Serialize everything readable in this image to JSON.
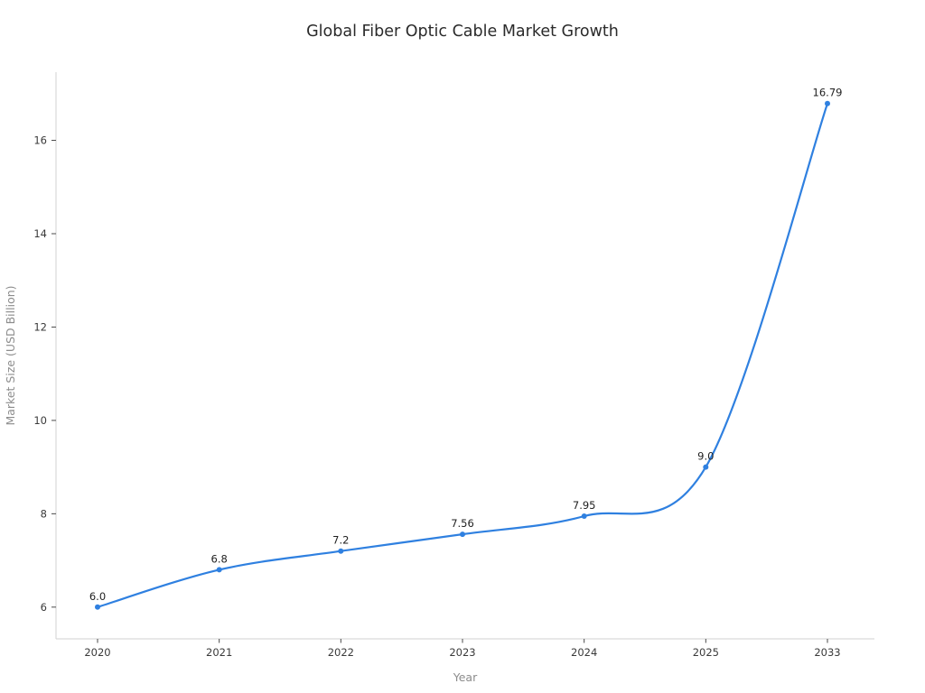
{
  "title": "Global Fiber Optic Cable Market Growth",
  "chart_data": {
    "type": "line",
    "title": "Global Fiber Optic Cable Market Growth",
    "xlabel": "Year",
    "ylabel": "Market Size (USD Billion)",
    "categories": [
      "2020",
      "2021",
      "2022",
      "2023",
      "2024",
      "2025",
      "2033"
    ],
    "values": [
      6.0,
      6.8,
      7.2,
      7.56,
      7.95,
      9.0,
      16.79
    ],
    "point_labels": [
      "6.0",
      "6.8",
      "7.2",
      "7.56",
      "7.95",
      "9.0",
      "16.79"
    ],
    "yticks": [
      6,
      8,
      10,
      12,
      14,
      16
    ],
    "ylim": [
      5.32,
      17.46
    ],
    "grid": false,
    "legend": "none",
    "smooth": true,
    "style": {
      "line_color": "#2f80e0",
      "marker_color": "#2f80e0",
      "axis_color": "#d2d2d2",
      "tick_color": "#4a4a4a",
      "tick_label_color": "#3a3a3a",
      "axis_title_color": "#8c8c8c",
      "title_color": "#2b2b2b",
      "point_label_color": "#1f1f1f",
      "background": "#ffffff"
    }
  }
}
